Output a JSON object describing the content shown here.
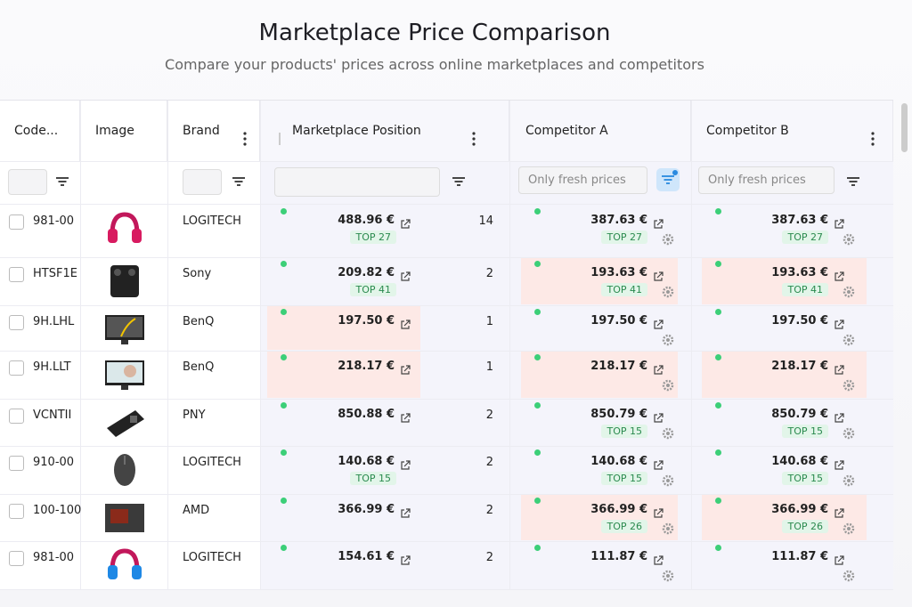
{
  "header": {
    "title": "Marketplace Price Comparison",
    "subtitle": "Compare your products' prices across online marketplaces and competitors"
  },
  "table": {
    "columns": [
      "Code...",
      "Image",
      "Brand",
      "Marketplace Position",
      "Competitor A",
      "Competitor B"
    ],
    "filter_placeholders": [
      "Only fresh prices",
      "Only fresh prices"
    ],
    "rows": [
      {
        "code": "981-00",
        "brand": "LOGITECH",
        "mp_price": "488.96 €",
        "mp_badge": "TOP 27",
        "position": 14,
        "a_price": "387.63 €",
        "a_badge": "TOP 27",
        "b_price": "387.63 €",
        "b_badge": "TOP 27"
      },
      {
        "code": "HTSF1E",
        "brand": "Sony",
        "mp_price": "209.82 €",
        "mp_badge": "TOP 41",
        "position": 2,
        "a_price": "193.63 €",
        "a_badge": "TOP 41",
        "a_highlight": true,
        "b_price": "193.63 €",
        "b_badge": "TOP 41",
        "b_highlight": true
      },
      {
        "code": "9H.LHL",
        "brand": "BenQ",
        "mp_price": "197.50 €",
        "mp_highlight": true,
        "position": 1,
        "a_price": "197.50 €",
        "b_price": "197.50 €"
      },
      {
        "code": "9H.LLT",
        "brand": "BenQ",
        "mp_price": "218.17 €",
        "mp_highlight": true,
        "position": 1,
        "a_price": "218.17 €",
        "a_highlight": true,
        "b_price": "218.17 €",
        "b_highlight": true
      },
      {
        "code": "VCNTII",
        "brand": "PNY",
        "mp_price": "850.88 €",
        "position": 2,
        "a_price": "850.79 €",
        "a_badge": "TOP 15",
        "b_price": "850.79 €",
        "b_badge": "TOP 15"
      },
      {
        "code": "910-00",
        "brand": "LOGITECH",
        "mp_price": "140.68 €",
        "mp_badge": "TOP 15",
        "position": 2,
        "a_price": "140.68 €",
        "a_badge": "TOP 15",
        "b_price": "140.68 €",
        "b_badge": "TOP 15"
      },
      {
        "code": "100-100",
        "brand": "AMD",
        "mp_price": "366.99 €",
        "position": 2,
        "a_price": "366.99 €",
        "a_badge": "TOP 26",
        "a_highlight": true,
        "b_price": "366.99 €",
        "b_badge": "TOP 26",
        "b_highlight": true
      },
      {
        "code": "981-00",
        "brand": "LOGITECH",
        "mp_price": "154.61 €",
        "position": 2,
        "a_price": "111.87 €",
        "b_price": "111.87 €"
      }
    ]
  }
}
